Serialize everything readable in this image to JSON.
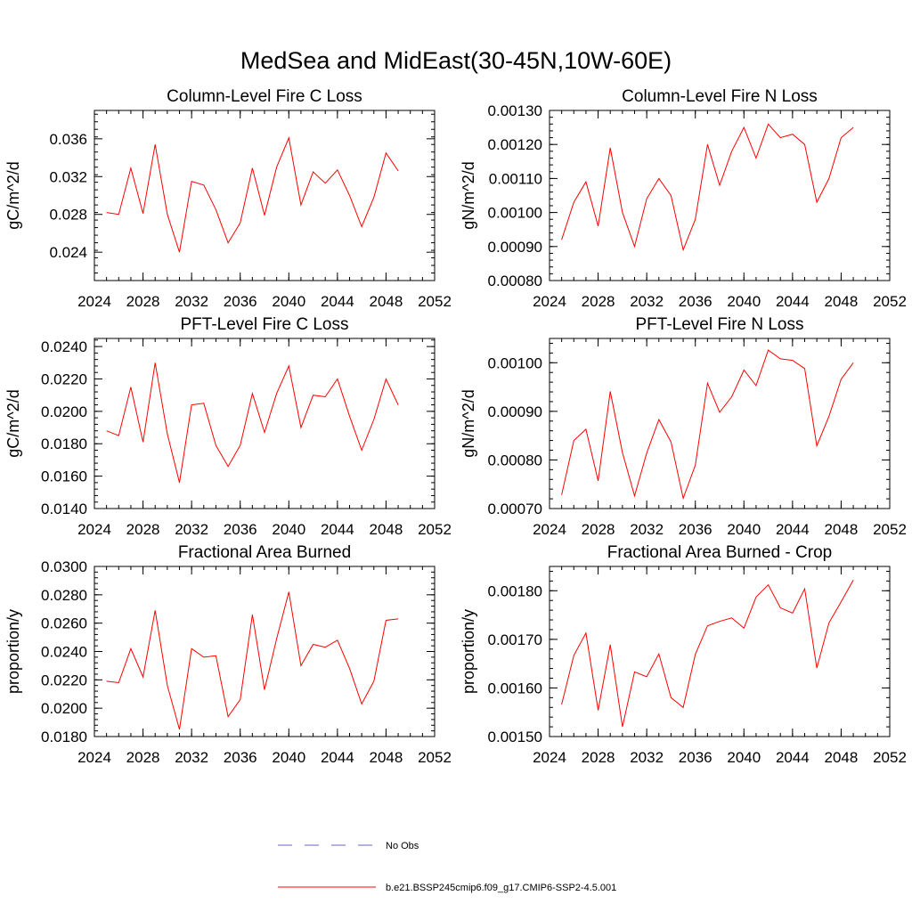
{
  "figure": {
    "title": "MedSea and MidEast(30-45N,10W-60E)"
  },
  "chart_data": [
    {
      "type": "line",
      "title": "Column-Level Fire C Loss",
      "xlabel": "",
      "ylabel": "gC/m^2/d",
      "xlim": [
        2024,
        2052
      ],
      "ylim": [
        0.021,
        0.039
      ],
      "xticks": [
        2024,
        2028,
        2032,
        2036,
        2040,
        2044,
        2048,
        2052
      ],
      "xtick_labels": [
        "2024",
        "2028",
        "2032",
        "2036",
        "2040",
        "2044",
        "2048",
        "2052"
      ],
      "yticks": [
        0.024,
        0.028,
        0.032,
        0.036
      ],
      "ytick_labels": [
        "0.024",
        "0.028",
        "0.032",
        "0.036"
      ],
      "x": [
        2025,
        2026,
        2027,
        2028,
        2029,
        2030,
        2031,
        2032,
        2033,
        2034,
        2035,
        2036,
        2037,
        2038,
        2039,
        2040,
        2041,
        2042,
        2043,
        2044,
        2045,
        2046,
        2047,
        2048,
        2049
      ],
      "series": [
        {
          "name": "b.e21.BSSP245cmip6.f09_g17.CMIP6-SSP2-4.5.001",
          "color": "#ff0000",
          "values": [
            0.0282,
            0.028,
            0.0329,
            0.0281,
            0.0354,
            0.028,
            0.024,
            0.0315,
            0.0311,
            0.0285,
            0.025,
            0.0271,
            0.0329,
            0.0279,
            0.033,
            0.0361,
            0.029,
            0.0325,
            0.0313,
            0.0327,
            0.03,
            0.0267,
            0.0298,
            0.0345,
            0.0326
          ]
        }
      ]
    },
    {
      "type": "line",
      "title": "Column-Level Fire N Loss",
      "xlabel": "",
      "ylabel": "gN/m^2/d",
      "xlim": [
        2024,
        2052
      ],
      "ylim": [
        0.0008,
        0.0013
      ],
      "xticks": [
        2024,
        2028,
        2032,
        2036,
        2040,
        2044,
        2048,
        2052
      ],
      "xtick_labels": [
        "2024",
        "2028",
        "2032",
        "2036",
        "2040",
        "2044",
        "2048",
        "2052"
      ],
      "yticks": [
        0.0008,
        0.0009,
        0.001,
        0.0011,
        0.0012,
        0.0013
      ],
      "ytick_labels": [
        "0.00080",
        "0.00090",
        "0.00100",
        "0.00110",
        "0.00120",
        "0.00130"
      ],
      "x": [
        2025,
        2026,
        2027,
        2028,
        2029,
        2030,
        2031,
        2032,
        2033,
        2034,
        2035,
        2036,
        2037,
        2038,
        2039,
        2040,
        2041,
        2042,
        2043,
        2044,
        2045,
        2046,
        2047,
        2048,
        2049
      ],
      "series": [
        {
          "name": "b.e21.BSSP245cmip6.f09_g17.CMIP6-SSP2-4.5.001",
          "color": "#ff0000",
          "values": [
            0.00092,
            0.00103,
            0.00109,
            0.00096,
            0.00119,
            0.001,
            0.0009,
            0.00104,
            0.0011,
            0.00105,
            0.00089,
            0.00098,
            0.0012,
            0.00108,
            0.00118,
            0.00125,
            0.00116,
            0.00126,
            0.00122,
            0.00123,
            0.0012,
            0.00103,
            0.0011,
            0.00122,
            0.00125
          ]
        }
      ]
    },
    {
      "type": "line",
      "title": "PFT-Level Fire C Loss",
      "xlabel": "",
      "ylabel": "gC/m^2/d",
      "xlim": [
        2024,
        2052
      ],
      "ylim": [
        0.014,
        0.0245
      ],
      "xticks": [
        2024,
        2028,
        2032,
        2036,
        2040,
        2044,
        2048,
        2052
      ],
      "xtick_labels": [
        "2024",
        "2028",
        "2032",
        "2036",
        "2040",
        "2044",
        "2048",
        "2052"
      ],
      "yticks": [
        0.014,
        0.016,
        0.018,
        0.02,
        0.022,
        0.024
      ],
      "ytick_labels": [
        "0.0140",
        "0.0160",
        "0.0180",
        "0.0200",
        "0.0220",
        "0.0240"
      ],
      "x": [
        2025,
        2026,
        2027,
        2028,
        2029,
        2030,
        2031,
        2032,
        2033,
        2034,
        2035,
        2036,
        2037,
        2038,
        2039,
        2040,
        2041,
        2042,
        2043,
        2044,
        2045,
        2046,
        2047,
        2048,
        2049
      ],
      "series": [
        {
          "name": "b.e21.BSSP245cmip6.f09_g17.CMIP6-SSP2-4.5.001",
          "color": "#ff0000",
          "values": [
            0.0188,
            0.0185,
            0.0215,
            0.0181,
            0.023,
            0.0186,
            0.0156,
            0.0204,
            0.0205,
            0.0179,
            0.0166,
            0.0179,
            0.0211,
            0.0187,
            0.0211,
            0.0228,
            0.019,
            0.021,
            0.0209,
            0.022,
            0.0197,
            0.0176,
            0.0195,
            0.022,
            0.0204
          ]
        }
      ]
    },
    {
      "type": "line",
      "title": "PFT-Level Fire N Loss",
      "xlabel": "",
      "ylabel": "gN/m^2/d",
      "xlim": [
        2024,
        2052
      ],
      "ylim": [
        0.0007,
        0.00105
      ],
      "xticks": [
        2024,
        2028,
        2032,
        2036,
        2040,
        2044,
        2048,
        2052
      ],
      "xtick_labels": [
        "2024",
        "2028",
        "2032",
        "2036",
        "2040",
        "2044",
        "2048",
        "2052"
      ],
      "yticks": [
        0.0007,
        0.0008,
        0.0009,
        0.001
      ],
      "ytick_labels": [
        "0.00070",
        "0.00080",
        "0.00090",
        "0.00100"
      ],
      "x": [
        2025,
        2026,
        2027,
        2028,
        2029,
        2030,
        2031,
        2032,
        2033,
        2034,
        2035,
        2036,
        2037,
        2038,
        2039,
        2040,
        2041,
        2042,
        2043,
        2044,
        2045,
        2046,
        2047,
        2048,
        2049
      ],
      "series": [
        {
          "name": "b.e21.BSSP245cmip6.f09_g17.CMIP6-SSP2-4.5.001",
          "color": "#ff0000",
          "values": [
            0.000728,
            0.00084,
            0.000863,
            0.000757,
            0.000941,
            0.000815,
            0.000726,
            0.000814,
            0.000883,
            0.000837,
            0.000721,
            0.000789,
            0.000958,
            0.000898,
            0.00093,
            0.000985,
            0.000953,
            0.001026,
            0.001008,
            0.001005,
            0.000988,
            0.000829,
            0.00089,
            0.000966,
            0.001
          ]
        }
      ]
    },
    {
      "type": "line",
      "title": "Fractional Area Burned",
      "xlabel": "",
      "ylabel": "proportion/y",
      "xlim": [
        2024,
        2052
      ],
      "ylim": [
        0.018,
        0.03
      ],
      "xticks": [
        2024,
        2028,
        2032,
        2036,
        2040,
        2044,
        2048,
        2052
      ],
      "xtick_labels": [
        "2024",
        "2028",
        "2032",
        "2036",
        "2040",
        "2044",
        "2048",
        "2052"
      ],
      "yticks": [
        0.018,
        0.02,
        0.022,
        0.024,
        0.026,
        0.028,
        0.03
      ],
      "ytick_labels": [
        "0.0180",
        "0.0200",
        "0.0220",
        "0.0240",
        "0.0260",
        "0.0280",
        "0.0300"
      ],
      "x": [
        2025,
        2026,
        2027,
        2028,
        2029,
        2030,
        2031,
        2032,
        2033,
        2034,
        2035,
        2036,
        2037,
        2038,
        2039,
        2040,
        2041,
        2042,
        2043,
        2044,
        2045,
        2046,
        2047,
        2048,
        2049
      ],
      "series": [
        {
          "name": "b.e21.BSSP245cmip6.f09_g17.CMIP6-SSP2-4.5.001",
          "color": "#ff0000",
          "values": [
            0.0219,
            0.0218,
            0.0242,
            0.0222,
            0.0269,
            0.0216,
            0.0185,
            0.0242,
            0.0236,
            0.0237,
            0.0194,
            0.0206,
            0.0266,
            0.0213,
            0.0249,
            0.0282,
            0.023,
            0.0245,
            0.0243,
            0.0248,
            0.0228,
            0.0203,
            0.0219,
            0.0262,
            0.0263
          ]
        }
      ]
    },
    {
      "type": "line",
      "title": "Fractional Area Burned - Crop",
      "xlabel": "",
      "ylabel": "proportion/y",
      "xlim": [
        2024,
        2052
      ],
      "ylim": [
        0.0015,
        0.00185
      ],
      "xticks": [
        2024,
        2028,
        2032,
        2036,
        2040,
        2044,
        2048,
        2052
      ],
      "xtick_labels": [
        "2024",
        "2028",
        "2032",
        "2036",
        "2040",
        "2044",
        "2048",
        "2052"
      ],
      "yticks": [
        0.0015,
        0.0016,
        0.0017,
        0.0018
      ],
      "ytick_labels": [
        "0.00150",
        "0.00160",
        "0.00170",
        "0.00180"
      ],
      "x": [
        2025,
        2026,
        2027,
        2028,
        2029,
        2030,
        2031,
        2032,
        2033,
        2034,
        2035,
        2036,
        2037,
        2038,
        2039,
        2040,
        2041,
        2042,
        2043,
        2044,
        2045,
        2046,
        2047,
        2048,
        2049
      ],
      "series": [
        {
          "name": "b.e21.BSSP245cmip6.f09_g17.CMIP6-SSP2-4.5.001",
          "color": "#ff0000",
          "values": [
            0.001566,
            0.001667,
            0.001713,
            0.001554,
            0.001689,
            0.00152,
            0.001633,
            0.001623,
            0.00167,
            0.00158,
            0.00156,
            0.001669,
            0.001728,
            0.001737,
            0.001744,
            0.001723,
            0.001787,
            0.001812,
            0.001765,
            0.001754,
            0.001804,
            0.001641,
            0.001734,
            0.001777,
            0.001822
          ]
        }
      ]
    }
  ],
  "legend": {
    "placement": "bottom-center",
    "items": [
      {
        "label": "No Obs",
        "color": "#6666bb",
        "dash": "dashed"
      },
      {
        "label": "b.e21.BSSP245cmip6.f09_g17.CMIP6-SSP2-4.5.001",
        "color": "#ff0000",
        "dash": "solid"
      }
    ]
  }
}
